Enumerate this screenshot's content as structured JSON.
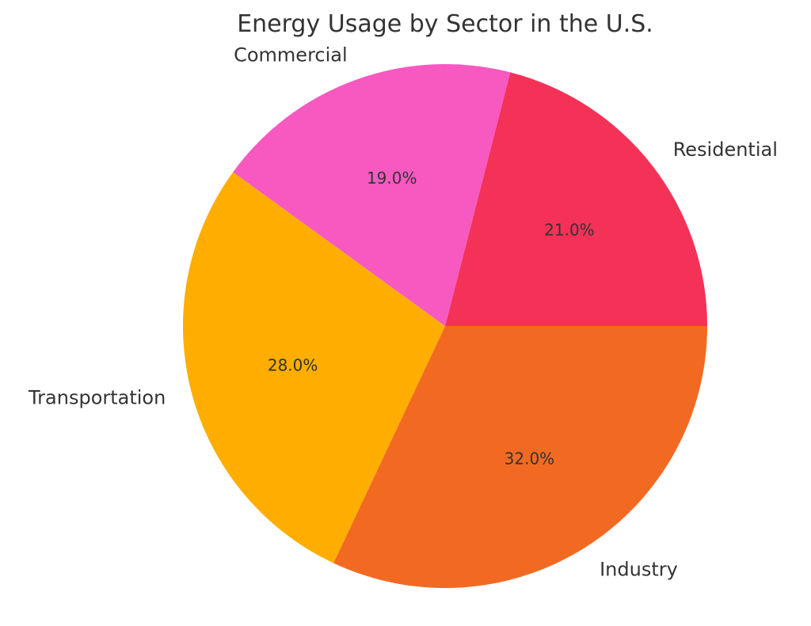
{
  "chart_data": {
    "type": "pie",
    "title": "Energy Usage by Sector in the U.S.",
    "slices": [
      {
        "label": "Residential",
        "value": 21.0,
        "pct_label": "21.0%",
        "color": "#f43157"
      },
      {
        "label": "Industry",
        "value": 32.0,
        "pct_label": "32.0%",
        "color": "#f26a22"
      },
      {
        "label": "Transportation",
        "value": 28.0,
        "pct_label": "28.0%",
        "color": "#ffae00"
      },
      {
        "label": "Commercial",
        "value": 19.0,
        "pct_label": "19.0%",
        "color": "#f759c1"
      }
    ],
    "direction": "clockwise",
    "legend": "none"
  }
}
